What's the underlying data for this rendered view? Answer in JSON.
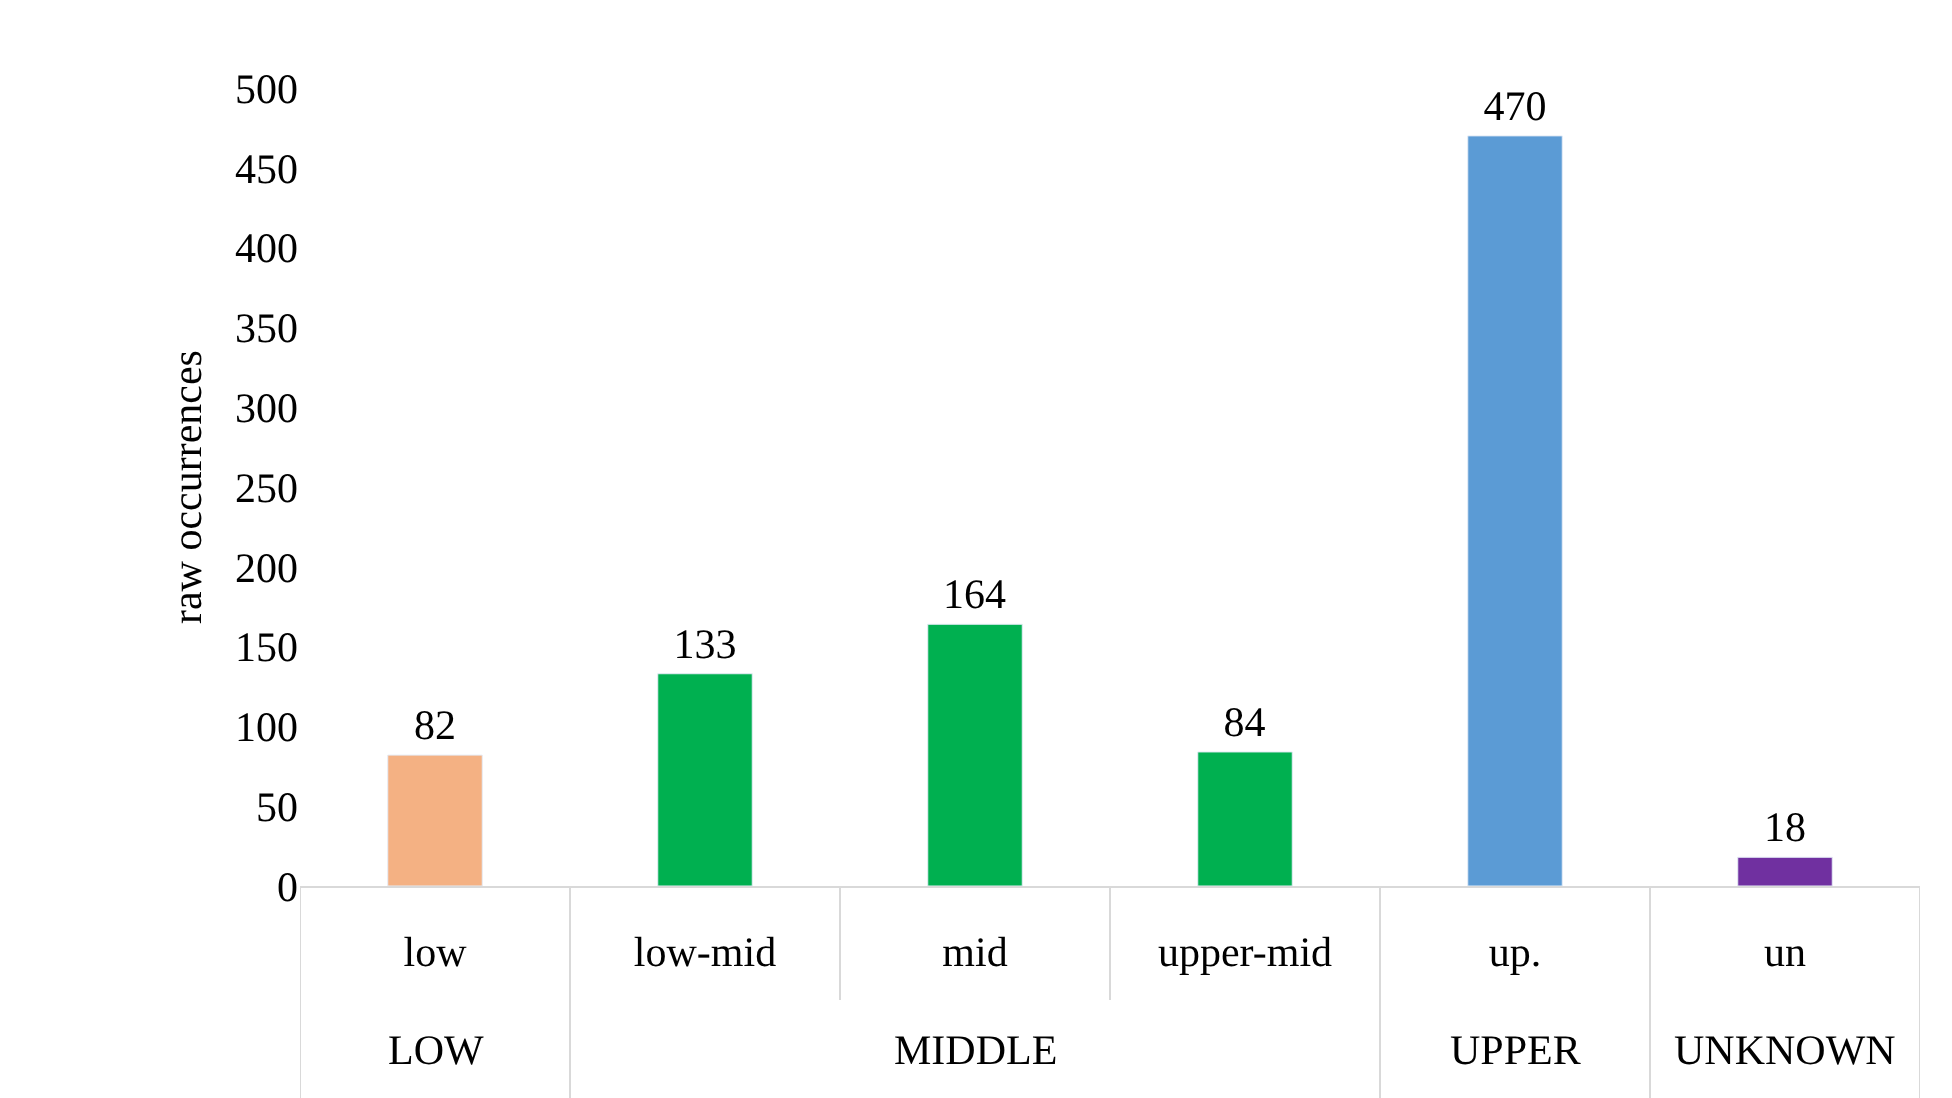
{
  "chart_data": {
    "type": "bar",
    "ylabel": "raw occurrences",
    "categories": [
      "low",
      "low-mid",
      "mid",
      "upper-mid",
      "up.",
      "un"
    ],
    "values": [
      82,
      133,
      164,
      84,
      470,
      18
    ],
    "colors": [
      "#f4b183",
      "#00b050",
      "#00b050",
      "#00b050",
      "#5b9bd5",
      "#7030a0"
    ],
    "ylim": [
      0,
      500
    ],
    "yticks": [
      0,
      50,
      100,
      150,
      200,
      250,
      300,
      350,
      400,
      450,
      500
    ],
    "data_labels": true,
    "grid": false,
    "annotations": [
      "LOW",
      "MIDDLE",
      "UPPER",
      "UNKNOWN"
    ]
  }
}
